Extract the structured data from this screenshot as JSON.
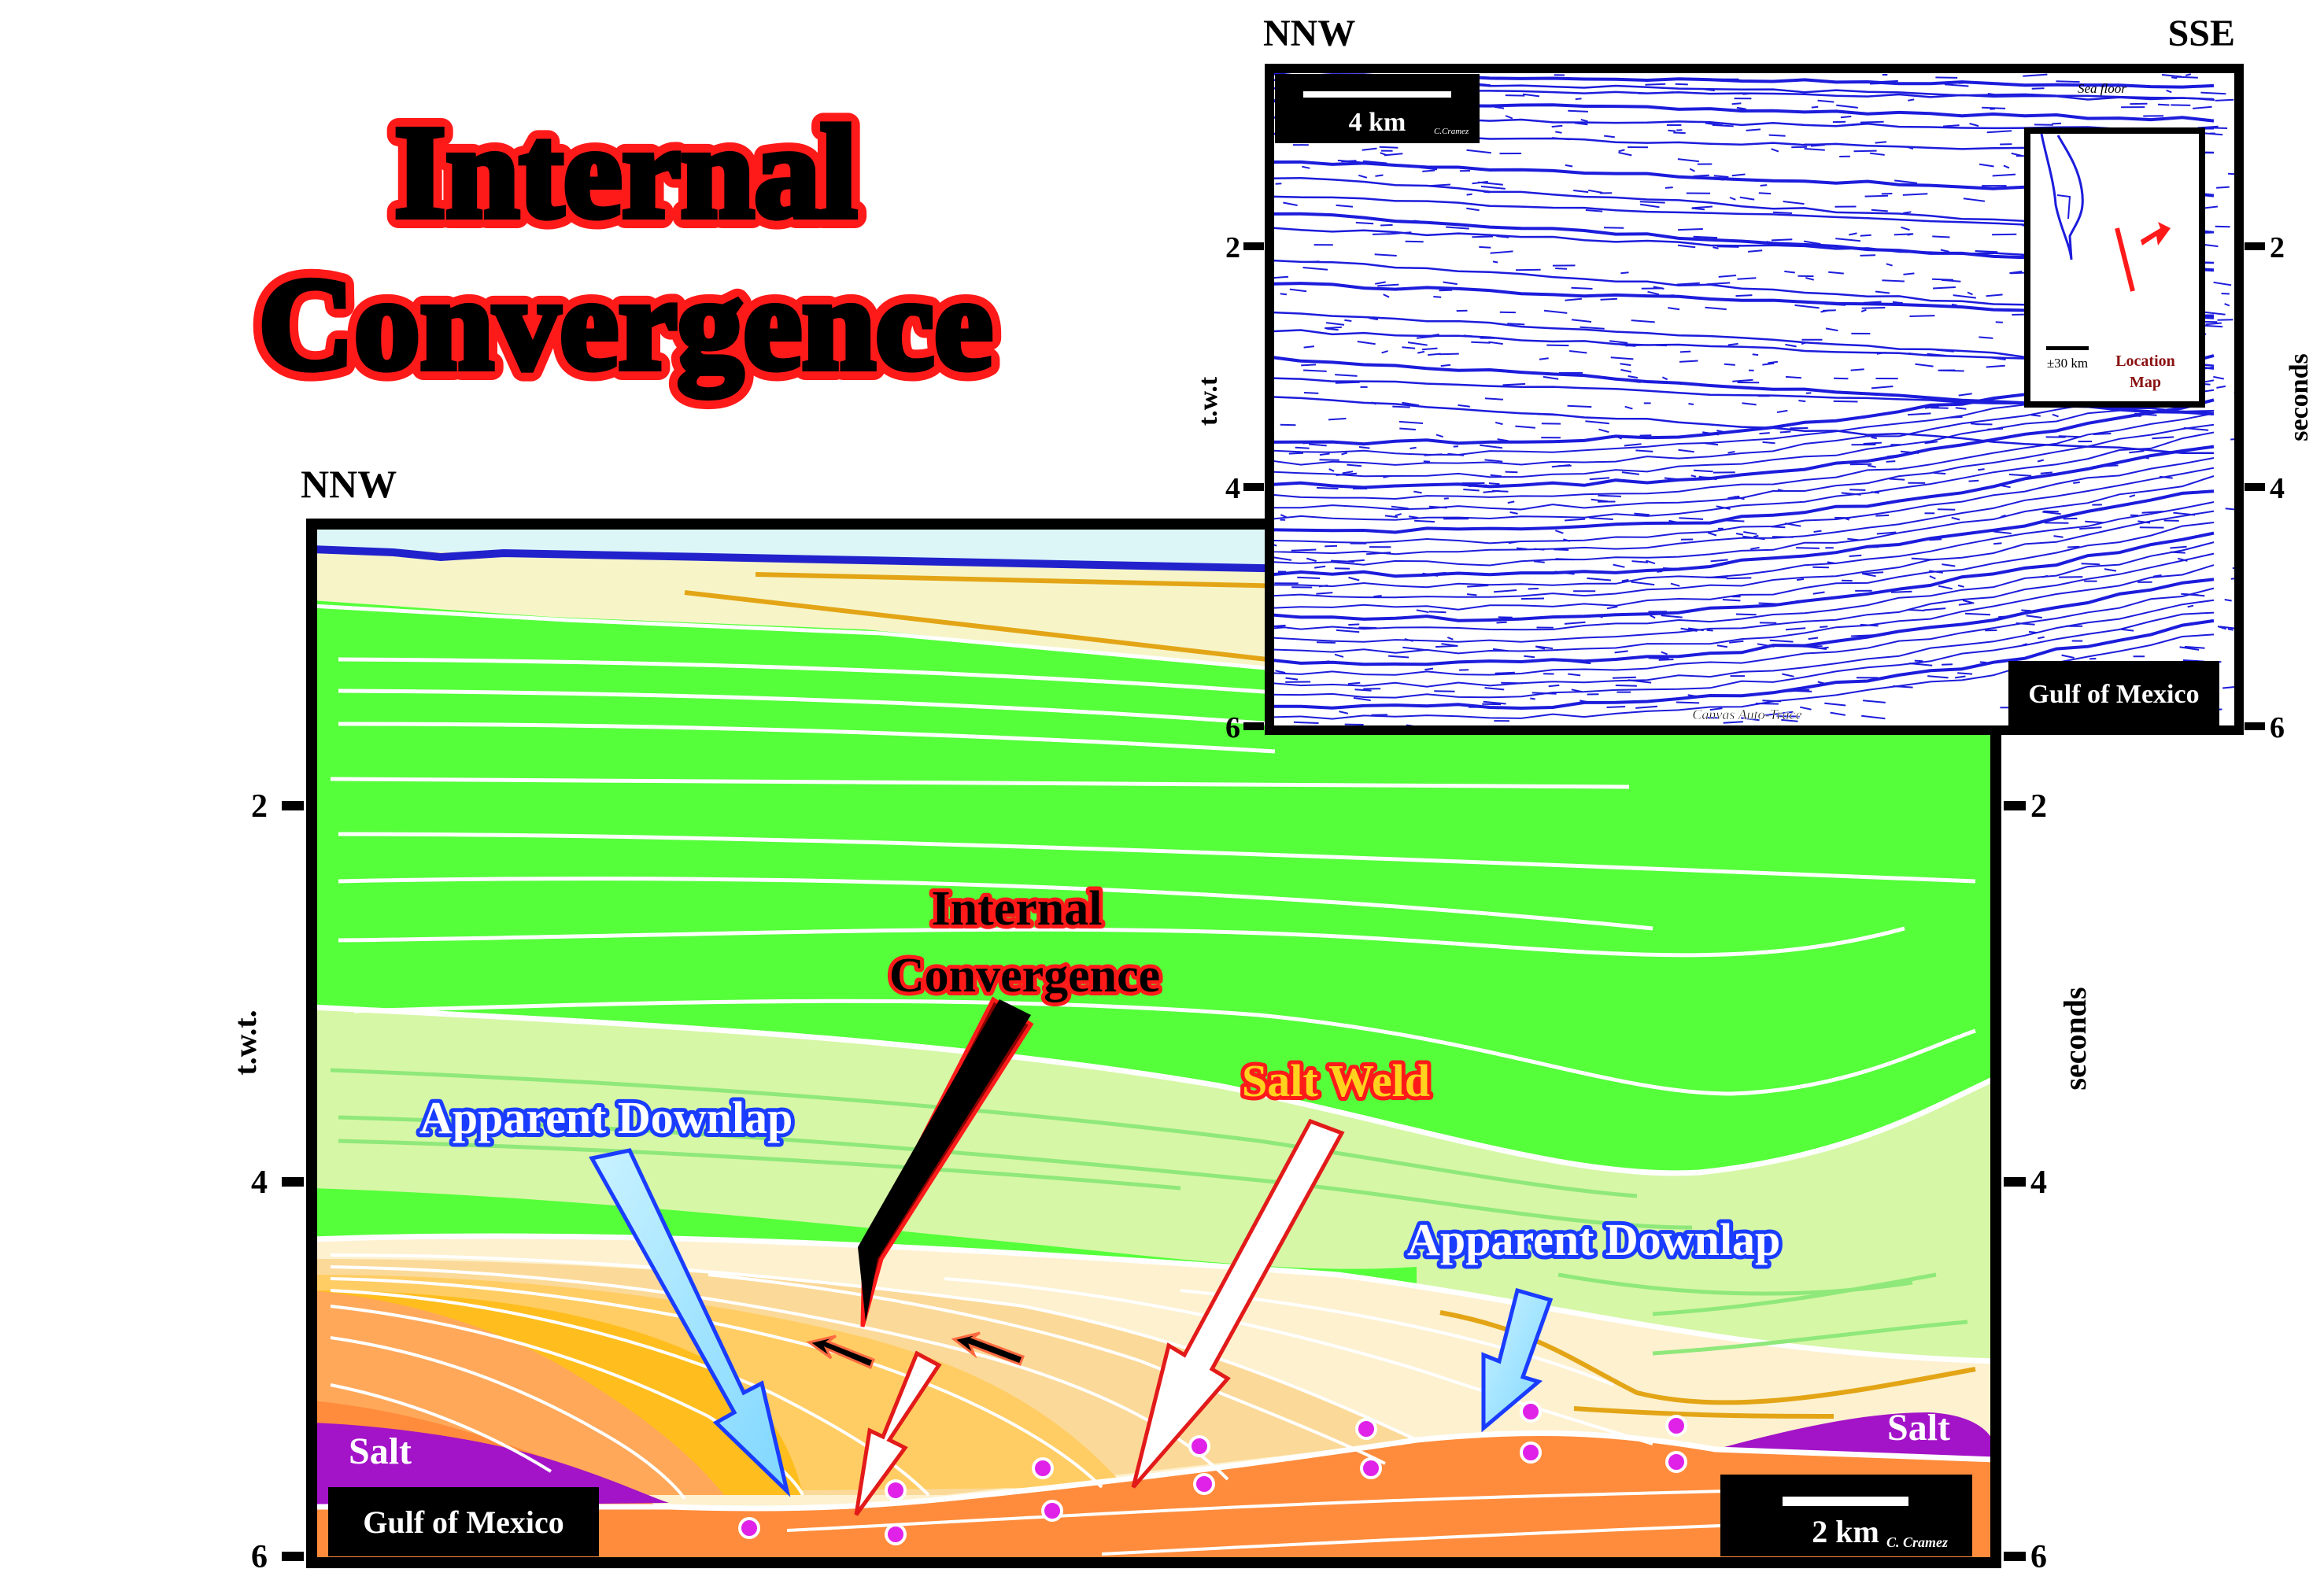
{
  "title": {
    "line1": "Internal",
    "line2": "Convergence"
  },
  "main_section": {
    "direction_left": "NNW",
    "axis_left_label": "t.w.t.",
    "axis_right_label": "seconds",
    "ticks": [
      "2",
      "4",
      "6"
    ],
    "labels": {
      "internal_convergence_1": "Internal",
      "internal_convergence_2": "Convergence",
      "apparent_downlap_left": "Apparent Downlap",
      "apparent_downlap_right": "Apparent Downlap",
      "salt_weld": "Salt Weld",
      "salt_left": "Salt",
      "salt_right": "Salt"
    },
    "location_box": "Gulf of Mexico",
    "scale_label": "2 km",
    "credit": "C. Cramez"
  },
  "seismic_inset": {
    "direction_left": "NNW",
    "direction_right": "SSE",
    "axis_left_label": "t.w.t",
    "axis_right_label": "seconds",
    "ticks": [
      "2",
      "4",
      "6"
    ],
    "scale_label": "4 km",
    "credit": "C.Cramez",
    "sea_floor": "Sea floor",
    "trace_credit": "Canvas Auto-Trace",
    "location_box": "Gulf of Mexico",
    "location_map": {
      "scale": "±30 km",
      "label_1": "Location",
      "label_2": "Map"
    }
  },
  "colors": {
    "title_red": "#ff1a1a",
    "green": "#55ff3a",
    "pale_green": "#d6f7a6",
    "pale_yellow": "#f7f5c8",
    "orange": "#ff8c3c",
    "gold": "#ffbe1e",
    "salt_purple": "#a313c8",
    "seismic_blue": "#1c1cdc",
    "downlap_blue": "#1a3cff"
  }
}
